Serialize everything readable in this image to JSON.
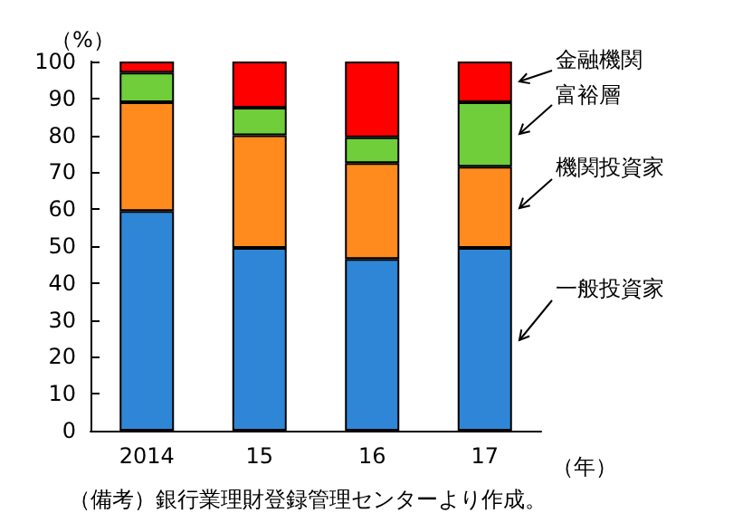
{
  "chart_data": {
    "type": "bar",
    "stacked": true,
    "ylabel": "（%）",
    "xlabel": "（年）",
    "categories": [
      "2014",
      "15",
      "16",
      "17"
    ],
    "series": [
      {
        "name": "一般投資家",
        "color": "#2f86d6",
        "values": [
          59.5,
          49.5,
          46.5,
          49.5
        ]
      },
      {
        "name": "機関投資家",
        "color": "#ff8a1e",
        "values": [
          29.5,
          30.5,
          26,
          22
        ]
      },
      {
        "name": "富裕層",
        "color": "#6fce3a",
        "values": [
          8,
          7.5,
          7,
          17.5
        ]
      },
      {
        "name": "金融機関",
        "color": "#ff0000",
        "values": [
          3,
          12.5,
          20.5,
          11
        ]
      }
    ],
    "ylim": [
      0,
      100
    ],
    "yticks": [
      0,
      10,
      20,
      30,
      40,
      50,
      60,
      70,
      80,
      90,
      100
    ],
    "grid": false,
    "legend": "right",
    "annotations": [
      "（備考）銀行業理財登録管理センターより作成。"
    ]
  }
}
